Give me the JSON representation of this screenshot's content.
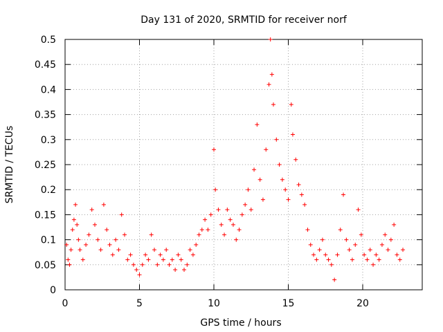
{
  "chart_data": {
    "type": "scatter",
    "title": "Day 131 of 2020, SRMTID for receiver norf",
    "xlabel": "GPS time / hours",
    "ylabel": "SRMTID / TECUs",
    "xlim": [
      0,
      24
    ],
    "ylim": [
      0,
      0.5
    ],
    "x_ticks": [
      0,
      5,
      10,
      15,
      20
    ],
    "x_tick_labels": [
      "0",
      "5",
      "10",
      "15",
      "20"
    ],
    "y_ticks": [
      0,
      0.05,
      0.1,
      0.15,
      0.2,
      0.25,
      0.3,
      0.35,
      0.4,
      0.45,
      0.5
    ],
    "y_tick_labels": [
      "0",
      "0.05",
      "0.1",
      "0.15",
      "0.2",
      "0.25",
      "0.3",
      "0.35",
      "0.4",
      "0.45",
      "0.5"
    ],
    "grid": true,
    "marker": "+",
    "marker_color": "#ff0000",
    "series": [
      {
        "name": "SRMTID",
        "points": [
          [
            0.1,
            0.09
          ],
          [
            0.2,
            0.06
          ],
          [
            0.3,
            0.05
          ],
          [
            0.4,
            0.08
          ],
          [
            0.5,
            0.12
          ],
          [
            0.6,
            0.14
          ],
          [
            0.7,
            0.17
          ],
          [
            0.8,
            0.13
          ],
          [
            0.9,
            0.1
          ],
          [
            1.0,
            0.08
          ],
          [
            1.2,
            0.06
          ],
          [
            1.4,
            0.09
          ],
          [
            1.6,
            0.11
          ],
          [
            1.8,
            0.16
          ],
          [
            2.0,
            0.13
          ],
          [
            2.2,
            0.1
          ],
          [
            2.4,
            0.08
          ],
          [
            2.6,
            0.17
          ],
          [
            2.8,
            0.12
          ],
          [
            3.0,
            0.09
          ],
          [
            3.2,
            0.07
          ],
          [
            3.4,
            0.1
          ],
          [
            3.6,
            0.08
          ],
          [
            3.8,
            0.15
          ],
          [
            4.0,
            0.11
          ],
          [
            4.2,
            0.06
          ],
          [
            4.4,
            0.07
          ],
          [
            4.6,
            0.05
          ],
          [
            4.8,
            0.04
          ],
          [
            5.0,
            0.03
          ],
          [
            5.2,
            0.05
          ],
          [
            5.4,
            0.07
          ],
          [
            5.6,
            0.06
          ],
          [
            5.8,
            0.11
          ],
          [
            6.0,
            0.08
          ],
          [
            6.2,
            0.05
          ],
          [
            6.4,
            0.07
          ],
          [
            6.6,
            0.06
          ],
          [
            6.8,
            0.08
          ],
          [
            7.0,
            0.05
          ],
          [
            7.2,
            0.06
          ],
          [
            7.4,
            0.04
          ],
          [
            7.6,
            0.07
          ],
          [
            7.8,
            0.06
          ],
          [
            8.0,
            0.04
          ],
          [
            8.2,
            0.05
          ],
          [
            8.4,
            0.08
          ],
          [
            8.6,
            0.07
          ],
          [
            8.8,
            0.09
          ],
          [
            9.0,
            0.11
          ],
          [
            9.2,
            0.12
          ],
          [
            9.4,
            0.14
          ],
          [
            9.6,
            0.12
          ],
          [
            9.8,
            0.15
          ],
          [
            10.0,
            0.28
          ],
          [
            10.1,
            0.2
          ],
          [
            10.3,
            0.16
          ],
          [
            10.5,
            0.13
          ],
          [
            10.7,
            0.11
          ],
          [
            10.9,
            0.16
          ],
          [
            11.1,
            0.14
          ],
          [
            11.3,
            0.13
          ],
          [
            11.5,
            0.1
          ],
          [
            11.7,
            0.12
          ],
          [
            11.9,
            0.15
          ],
          [
            12.1,
            0.17
          ],
          [
            12.3,
            0.2
          ],
          [
            12.5,
            0.16
          ],
          [
            12.7,
            0.24
          ],
          [
            12.9,
            0.33
          ],
          [
            13.1,
            0.22
          ],
          [
            13.3,
            0.18
          ],
          [
            13.5,
            0.28
          ],
          [
            13.7,
            0.41
          ],
          [
            13.8,
            0.5
          ],
          [
            13.9,
            0.43
          ],
          [
            14.0,
            0.37
          ],
          [
            14.2,
            0.3
          ],
          [
            14.4,
            0.25
          ],
          [
            14.6,
            0.22
          ],
          [
            14.8,
            0.2
          ],
          [
            15.0,
            0.18
          ],
          [
            15.2,
            0.37
          ],
          [
            15.3,
            0.31
          ],
          [
            15.5,
            0.26
          ],
          [
            15.7,
            0.21
          ],
          [
            15.9,
            0.19
          ],
          [
            16.1,
            0.17
          ],
          [
            16.3,
            0.12
          ],
          [
            16.5,
            0.09
          ],
          [
            16.7,
            0.07
          ],
          [
            16.9,
            0.06
          ],
          [
            17.1,
            0.08
          ],
          [
            17.3,
            0.1
          ],
          [
            17.5,
            0.07
          ],
          [
            17.7,
            0.06
          ],
          [
            17.9,
            0.05
          ],
          [
            18.1,
            0.02
          ],
          [
            18.3,
            0.07
          ],
          [
            18.5,
            0.12
          ],
          [
            18.7,
            0.19
          ],
          [
            18.9,
            0.1
          ],
          [
            19.1,
            0.08
          ],
          [
            19.3,
            0.06
          ],
          [
            19.5,
            0.09
          ],
          [
            19.7,
            0.16
          ],
          [
            19.9,
            0.11
          ],
          [
            20.1,
            0.07
          ],
          [
            20.3,
            0.06
          ],
          [
            20.5,
            0.08
          ],
          [
            20.7,
            0.05
          ],
          [
            20.9,
            0.07
          ],
          [
            21.1,
            0.06
          ],
          [
            21.3,
            0.09
          ],
          [
            21.5,
            0.11
          ],
          [
            21.7,
            0.08
          ],
          [
            21.9,
            0.1
          ],
          [
            22.1,
            0.13
          ],
          [
            22.3,
            0.07
          ],
          [
            22.5,
            0.06
          ],
          [
            22.7,
            0.08
          ]
        ]
      }
    ]
  }
}
